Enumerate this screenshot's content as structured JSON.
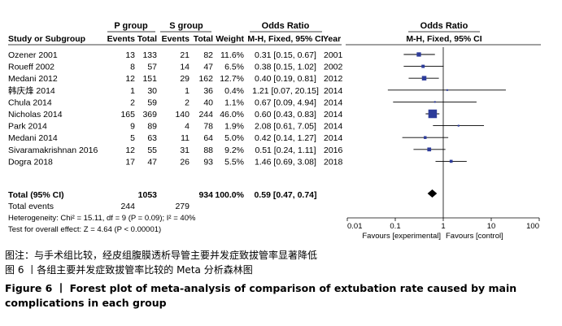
{
  "chart_data": {
    "type": "forest",
    "group_headers": {
      "experimental": "P group",
      "control": "S group",
      "odds_ratio": "Odds Ratio",
      "plot_odds_ratio": "Odds Ratio"
    },
    "columns": {
      "study": "Study or Subgroup",
      "events_exp": "Events",
      "total_exp": "Total",
      "events_ctl": "Events",
      "total_ctl": "Total",
      "weight": "Weight",
      "or_ci": "M-H, Fixed, 95% CI",
      "year": "Year",
      "plot": "M-H, Fixed, 95% CI"
    },
    "studies": [
      {
        "name": "Ozener 2001",
        "events_exp": "13",
        "total_exp": "133",
        "events_ctl": "21",
        "total_ctl": "82",
        "weight": "11.6%",
        "or_ci": "0.31 [0.15, 0.67]",
        "year": "2001",
        "or": 0.31,
        "lo": 0.15,
        "hi": 0.67
      },
      {
        "name": "Roueff 2002",
        "events_exp": "8",
        "total_exp": "57",
        "events_ctl": "14",
        "total_ctl": "47",
        "weight": "6.5%",
        "or_ci": "0.38 [0.15, 1.02]",
        "year": "2002",
        "or": 0.38,
        "lo": 0.15,
        "hi": 1.02
      },
      {
        "name": "Medani 2012",
        "events_exp": "12",
        "total_exp": "151",
        "events_ctl": "29",
        "total_ctl": "162",
        "weight": "12.7%",
        "or_ci": "0.40 [0.19, 0.81]",
        "year": "2012",
        "or": 0.4,
        "lo": 0.19,
        "hi": 0.81
      },
      {
        "name": "韩庆烽 2014",
        "events_exp": "1",
        "total_exp": "30",
        "events_ctl": "1",
        "total_ctl": "36",
        "weight": "0.4%",
        "or_ci": "1.21 [0.07, 20.15]",
        "year": "2014",
        "or": 1.21,
        "lo": 0.07,
        "hi": 20.15
      },
      {
        "name": "Chula 2014",
        "events_exp": "2",
        "total_exp": "59",
        "events_ctl": "2",
        "total_ctl": "40",
        "weight": "1.1%",
        "or_ci": "0.67 [0.09, 4.94]",
        "year": "2014",
        "or": 0.67,
        "lo": 0.09,
        "hi": 4.94
      },
      {
        "name": "Nicholas 2014",
        "events_exp": "165",
        "total_exp": "369",
        "events_ctl": "140",
        "total_ctl": "244",
        "weight": "46.0%",
        "or_ci": "0.60 [0.43, 0.83]",
        "year": "2014",
        "or": 0.6,
        "lo": 0.43,
        "hi": 0.83
      },
      {
        "name": "Park 2014",
        "events_exp": "9",
        "total_exp": "89",
        "events_ctl": "4",
        "total_ctl": "78",
        "weight": "1.9%",
        "or_ci": "2.08 [0.61, 7.05]",
        "year": "2014",
        "or": 2.08,
        "lo": 0.61,
        "hi": 7.05
      },
      {
        "name": "Medani 2014",
        "events_exp": "5",
        "total_exp": "63",
        "events_ctl": "11",
        "total_ctl": "64",
        "weight": "5.0%",
        "or_ci": "0.42 [0.14, 1.27]",
        "year": "2014",
        "or": 0.42,
        "lo": 0.14,
        "hi": 1.27
      },
      {
        "name": "Sivaramakrishnan 2016",
        "events_exp": "12",
        "total_exp": "55",
        "events_ctl": "31",
        "total_ctl": "88",
        "weight": "9.2%",
        "or_ci": "0.51 [0.24, 1.11]",
        "year": "2016",
        "or": 0.51,
        "lo": 0.24,
        "hi": 1.11
      },
      {
        "name": "Dogra 2018",
        "events_exp": "17",
        "total_exp": "47",
        "events_ctl": "26",
        "total_ctl": "93",
        "weight": "5.5%",
        "or_ci": "1.46 [0.69, 3.08]",
        "year": "2018",
        "or": 1.46,
        "lo": 0.69,
        "hi": 3.08
      }
    ],
    "total": {
      "name": "Total (95% CI)",
      "total_exp": "1053",
      "total_ctl": "934",
      "weight": "100.0%",
      "or_ci": "0.59 [0.47, 0.74]",
      "or": 0.59,
      "lo": 0.47,
      "hi": 0.74
    },
    "total_events": {
      "label": "Total events",
      "exp": "244",
      "ctl": "279"
    },
    "heterogeneity": "Heterogeneity: Chi² = 15.11, df = 9 (P = 0.09); I² = 40%",
    "overall_effect": "Test for overall effect: Z = 4.64 (P < 0.00001)",
    "x_axis": {
      "scale": "log",
      "range": [
        0.01,
        100
      ],
      "ticks": [
        0.01,
        0.1,
        1,
        10,
        100
      ],
      "tick_labels": [
        "0.01",
        "0.1",
        "1",
        "10",
        "100"
      ],
      "favours_left": "Favours [experimental]",
      "favours_right": "Favours [control]"
    },
    "colors": {
      "marker": "#2d3c9a",
      "ci": "#000000",
      "diamond": "#000000",
      "null_line": "#000000"
    }
  },
  "captions": {
    "cn_note": "图注：与手术组比较，经皮组腹膜透析导管主要并发症致拔管率显著降低",
    "cn_title": "图 6 丨各组主要并发症致拔管率比较的 Meta 分析森林图",
    "en_title": "Figure 6 丨 Forest plot of meta-analysis of comparison of extubation rate caused by main complications in each group"
  }
}
